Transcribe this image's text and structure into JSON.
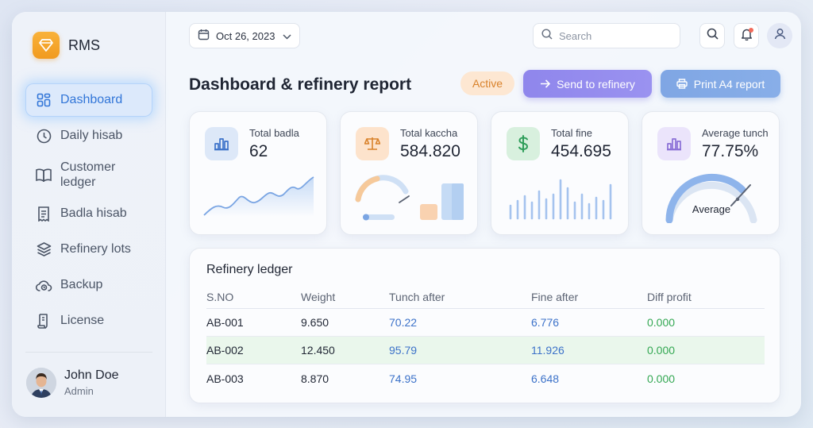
{
  "app": {
    "name": "RMS"
  },
  "sidebar": {
    "items": [
      {
        "label": "Dashboard",
        "icon": "dashboard-icon"
      },
      {
        "label": "Daily hisab",
        "icon": "clock-icon"
      },
      {
        "label": "Customer ledger",
        "icon": "book-icon"
      },
      {
        "label": "Badla hisab",
        "icon": "receipt-icon"
      },
      {
        "label": "Refinery lots",
        "icon": "layers-icon"
      },
      {
        "label": "Backup",
        "icon": "cloud-backup-icon"
      },
      {
        "label": "License",
        "icon": "license-icon"
      }
    ],
    "active_index": 0
  },
  "user": {
    "name": "John Doe",
    "role": "Admin"
  },
  "header": {
    "date": "Oct 26, 2023",
    "search_placeholder": "Search"
  },
  "page": {
    "title": "Dashboard & refinery report",
    "status_badge": "Active",
    "send_button": "Send to refinery",
    "print_button": "Print A4 report"
  },
  "cards": [
    {
      "label": "Total badla",
      "value": "62",
      "icon": "bar-chart-icon",
      "accent": "#4a86d8"
    },
    {
      "label": "Total kaccha",
      "value": "584.820",
      "icon": "scale-icon",
      "accent": "#e08a3a"
    },
    {
      "label": "Total fine",
      "value": "454.695",
      "icon": "dollar-icon",
      "accent": "#2f9e5a"
    },
    {
      "label": "Average tunch",
      "value": "77.75%",
      "icon": "bar-chart-icon",
      "accent": "#8a6fd6",
      "gauge_label": "Average"
    }
  ],
  "ledger": {
    "title": "Refinery ledger",
    "columns": [
      "S.NO",
      "Weight",
      "Tunch after",
      "Fine after",
      "Diff profit"
    ],
    "rows": [
      {
        "sno": "AB-001",
        "weight": "9.650",
        "tunch": "70.22",
        "fine": "6.776",
        "diff": "0.000"
      },
      {
        "sno": "AB-002",
        "weight": "12.450",
        "tunch": "95.79",
        "fine": "11.926",
        "diff": "0.000"
      },
      {
        "sno": "AB-003",
        "weight": "8.870",
        "tunch": "74.95",
        "fine": "6.648",
        "diff": "0.000"
      }
    ],
    "highlight_row": 1
  },
  "colors": {
    "accent_blue": "#3276d8",
    "send_button": "#8f86ec",
    "print_button": "#7fa6e4",
    "profit_green": "#34a853"
  }
}
